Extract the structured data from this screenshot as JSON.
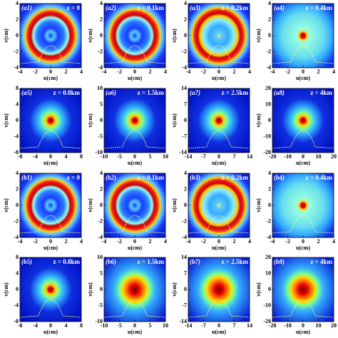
{
  "panels": [
    {
      "label": "(a1)",
      "z": "z = 0",
      "xticks": [
        -4,
        -2,
        0,
        2,
        4
      ],
      "yticks": [
        4,
        2,
        0,
        -2,
        -4
      ],
      "xlabel": "u(cm)",
      "ylabel": "v(cm)"
    },
    {
      "label": "(a2)",
      "z": "z = 0.1km",
      "xticks": [
        -4,
        -2,
        0,
        2,
        4
      ],
      "yticks": [
        4,
        2,
        0,
        -2,
        -4
      ],
      "xlabel": "u(cm)",
      "ylabel": "v(cm)"
    },
    {
      "label": "(a3)",
      "z": "z = 0.2km",
      "xticks": [
        -4,
        -2,
        0,
        2,
        4
      ],
      "yticks": [
        4,
        2,
        0,
        -2,
        -4
      ],
      "xlabel": "u(cm)",
      "ylabel": "v(cm)"
    },
    {
      "label": "(a4)",
      "z": "z = 0.4km",
      "xticks": [
        -4,
        -2,
        0,
        2,
        4
      ],
      "yticks": [
        4,
        2,
        0,
        -2,
        -4
      ],
      "xlabel": "u(cm)",
      "ylabel": "v(cm)"
    },
    {
      "label": "(a5)",
      "z": "z = 0.8km",
      "xticks": [
        -8,
        -4,
        0,
        4,
        8
      ],
      "yticks": [
        8,
        4,
        0,
        -4,
        -8
      ],
      "xlabel": "u(cm)",
      "ylabel": "v(cm)"
    },
    {
      "label": "(a6)",
      "z": "z = 1.5km",
      "xticks": [
        -10,
        -5,
        0,
        5,
        10
      ],
      "yticks": [
        10,
        5,
        0,
        -5,
        -10
      ],
      "xlabel": "u(cm)",
      "ylabel": "v(cm)"
    },
    {
      "label": "(a7)",
      "z": "z = 2.5km",
      "xticks": [
        -14,
        -7,
        0,
        7,
        14
      ],
      "yticks": [
        14,
        7,
        0,
        -7,
        -14
      ],
      "xlabel": "u(cm)",
      "ylabel": "v(cm)"
    },
    {
      "label": "(a8)",
      "z": "z = 4km",
      "xticks": [
        -20,
        -10,
        0,
        10,
        20
      ],
      "yticks": [
        20,
        10,
        0,
        -10,
        -20
      ],
      "xlabel": "u(cm)",
      "ylabel": "v(cm)"
    },
    {
      "label": "(b1)",
      "z": "z = 0",
      "xticks": [
        -4,
        -2,
        0,
        2,
        4
      ],
      "yticks": [
        4,
        2,
        0,
        -2,
        -4
      ],
      "xlabel": "u(cm)",
      "ylabel": "v(cm)"
    },
    {
      "label": "(b2)",
      "z": "z = 0.1km",
      "xticks": [
        -4,
        -2,
        0,
        2,
        4
      ],
      "yticks": [
        4,
        2,
        0,
        -2,
        -4
      ],
      "xlabel": "u(cm)",
      "ylabel": "v(cm)"
    },
    {
      "label": "(b3)",
      "z": "z = 0.2km",
      "xticks": [
        -4,
        -2,
        0,
        2,
        4
      ],
      "yticks": [
        4,
        2,
        0,
        -2,
        -4
      ],
      "xlabel": "u(cm)",
      "ylabel": "v(cm)"
    },
    {
      "label": "(b4)",
      "z": "z = 0.4km",
      "xticks": [
        -4,
        -2,
        0,
        2,
        4
      ],
      "yticks": [
        4,
        2,
        0,
        -2,
        -4
      ],
      "xlabel": "u(cm)",
      "ylabel": "v(cm)"
    },
    {
      "label": "(b5)",
      "z": "z = 0.8km",
      "xticks": [
        -8,
        -4,
        0,
        4,
        8
      ],
      "yticks": [
        8,
        4,
        0,
        -4,
        -8
      ],
      "xlabel": "u(cm)",
      "ylabel": "v(cm)"
    },
    {
      "label": "(b6)",
      "z": "z = 1.5km",
      "xticks": [
        -10,
        -5,
        0,
        5,
        10
      ],
      "yticks": [
        10,
        5,
        0,
        -5,
        -10
      ],
      "xlabel": "u(cm)",
      "ylabel": "v(cm)"
    },
    {
      "label": "(b7)",
      "z": "z = 2.5km",
      "xticks": [
        -14,
        -7,
        0,
        7,
        14
      ],
      "yticks": [
        14,
        7,
        0,
        -7,
        -14
      ],
      "xlabel": "u(cm)",
      "ylabel": "v(cm)"
    },
    {
      "label": "(b8)",
      "z": "z = 4km",
      "xticks": [
        -20,
        -10,
        0,
        10,
        20
      ],
      "yticks": [
        20,
        10,
        0,
        -10,
        -20
      ],
      "xlabel": "u(cm)",
      "ylabel": "v(cm)"
    }
  ]
}
